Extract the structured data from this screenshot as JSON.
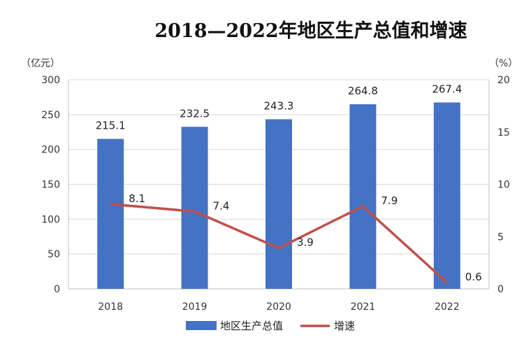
{
  "chart_data": {
    "type": "bar",
    "title": "2018—2022年地区生产总值和增速",
    "categories": [
      "2018",
      "2019",
      "2020",
      "2021",
      "2022"
    ],
    "series": [
      {
        "name": "地区生产总值",
        "type": "bar",
        "axis": "left",
        "color": "#4472c4",
        "values": [
          215.1,
          232.5,
          243.3,
          264.8,
          267.4
        ],
        "labels": [
          "215.1",
          "232.5",
          "243.3",
          "264.8",
          "267.4"
        ]
      },
      {
        "name": "增速",
        "type": "line",
        "axis": "right",
        "color": "#c0504d",
        "values": [
          8.1,
          7.4,
          3.9,
          7.9,
          0.6
        ],
        "labels": [
          "8.1",
          "7.4",
          "3.9",
          "7.9",
          "0.6"
        ]
      }
    ],
    "y_left": {
      "unit": "（亿元）",
      "min": 0,
      "max": 300,
      "ticks": [
        "0",
        "50",
        "100",
        "150",
        "200",
        "250",
        "300"
      ]
    },
    "y_right": {
      "unit": "（%）",
      "min": 0,
      "max": 20,
      "ticks": [
        "0",
        "5",
        "10",
        "15",
        "20"
      ]
    },
    "grid": true,
    "legend_position": "bottom"
  }
}
